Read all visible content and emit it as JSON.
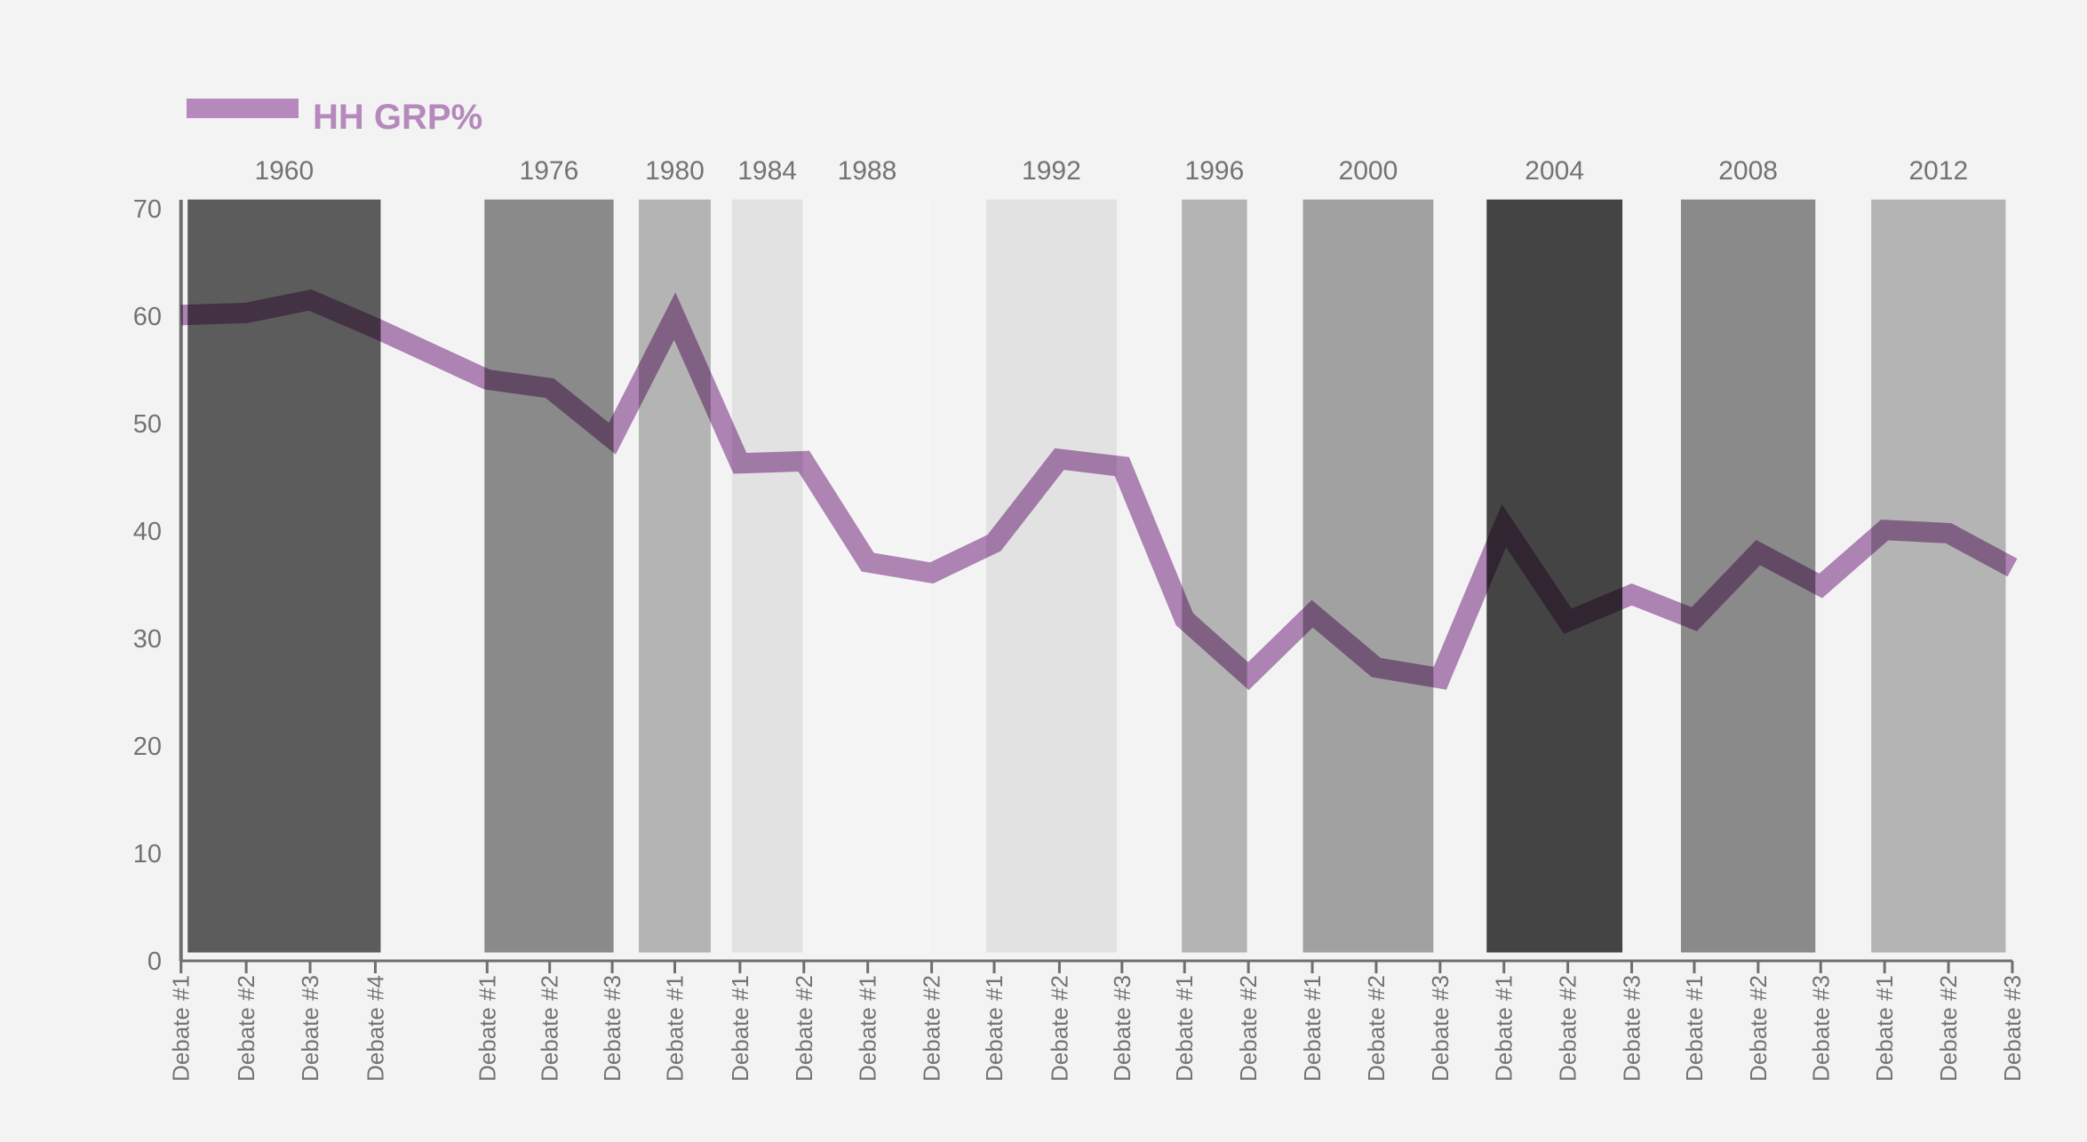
{
  "chart_data": {
    "type": "line",
    "title": "",
    "xlabel": "",
    "ylabel": "",
    "ylim": [
      0,
      70
    ],
    "yticks": [
      0,
      10,
      20,
      30,
      40,
      50,
      60,
      70
    ],
    "grid": false,
    "legend": {
      "position": "top-left",
      "entries": [
        "HH GRP%"
      ]
    },
    "colors": {
      "line": "#b589bb",
      "background": "#f3f3f3",
      "axis": "#6e6e6e",
      "text": "#737373"
    },
    "groups": [
      {
        "year": "1960",
        "color": "#5c5c5c",
        "debates": [
          "Debate #1",
          "Debate #2",
          "Debate #3",
          "Debate #4"
        ],
        "values": [
          60.1,
          60.3,
          61.5,
          58.9
        ]
      },
      {
        "year": "1976",
        "color": "#8a8a8a",
        "debates": [
          "Debate #1",
          "Debate #2",
          "Debate #3"
        ],
        "values": [
          54.1,
          53.3,
          48.6
        ]
      },
      {
        "year": "1980",
        "color": "#b4b4b4",
        "debates": [
          "Debate #1"
        ],
        "values": [
          60.0
        ]
      },
      {
        "year": "1984",
        "color": "#e2e2e2",
        "debates": [
          "Debate #1",
          "Debate #2"
        ],
        "values": [
          46.3,
          46.5
        ]
      },
      {
        "year": "1988",
        "color": "#f5f5f5",
        "debates": [
          "Debate #1",
          "Debate #2"
        ],
        "values": [
          37.1,
          36.1
        ]
      },
      {
        "year": "1992",
        "color": "#e2e2e2",
        "debates": [
          "Debate #1",
          "Debate #2",
          "Debate #3"
        ],
        "values": [
          38.9,
          46.7,
          46.0
        ]
      },
      {
        "year": "1996",
        "color": "#b4b4b4",
        "debates": [
          "Debate #1",
          "Debate #2"
        ],
        "values": [
          31.8,
          26.5
        ]
      },
      {
        "year": "2000",
        "color": "#a1a1a1",
        "debates": [
          "Debate #1",
          "Debate #2",
          "Debate #3"
        ],
        "values": [
          32.3,
          27.3,
          26.3
        ]
      },
      {
        "year": "2004",
        "color": "#444444",
        "debates": [
          "Debate #1",
          "Debate #2",
          "Debate #3"
        ],
        "values": [
          40.5,
          31.6,
          34.1
        ]
      },
      {
        "year": "2008",
        "color": "#8a8a8a",
        "debates": [
          "Debate #1",
          "Debate #2",
          "Debate #3"
        ],
        "values": [
          31.8,
          38.0,
          34.9
        ]
      },
      {
        "year": "2012",
        "color": "#b4b4b4",
        "debates": [
          "Debate #1",
          "Debate #2",
          "Debate #3"
        ],
        "values": [
          40.1,
          39.8,
          36.6
        ]
      }
    ],
    "series": [
      {
        "name": "HH GRP%"
      }
    ]
  }
}
